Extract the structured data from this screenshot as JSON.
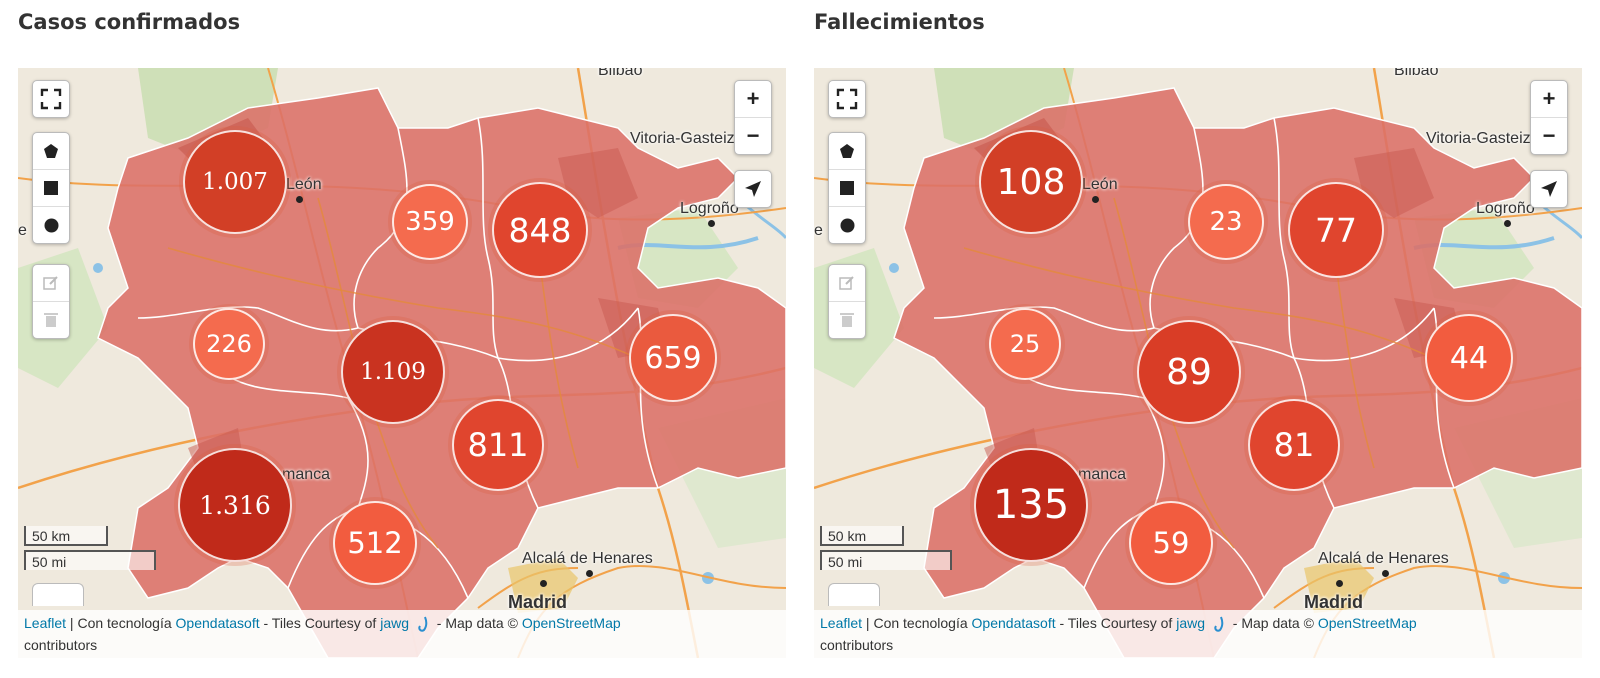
{
  "panels": [
    {
      "title": "Casos confirmados",
      "clusters": [
        {
          "label": "1.007",
          "value": 1007,
          "color": "#d23f26"
        },
        {
          "label": "359",
          "value": 359,
          "color": "#f46b4e"
        },
        {
          "label": "848",
          "value": 848,
          "color": "#e0452e"
        },
        {
          "label": "226",
          "value": 226,
          "color": "#f46b4e"
        },
        {
          "label": "1.109",
          "value": 1109,
          "color": "#c93320"
        },
        {
          "label": "659",
          "value": 659,
          "color": "#ea5a3e"
        },
        {
          "label": "811",
          "value": 811,
          "color": "#e0452e"
        },
        {
          "label": "1.316",
          "value": 1316,
          "color": "#c02a1a"
        },
        {
          "label": "512",
          "value": 512,
          "color": "#f25c3f"
        }
      ]
    },
    {
      "title": "Fallecimientos",
      "clusters": [
        {
          "label": "108",
          "value": 108,
          "color": "#d23f26"
        },
        {
          "label": "23",
          "value": 23,
          "color": "#f46b4e"
        },
        {
          "label": "77",
          "value": 77,
          "color": "#e0452e"
        },
        {
          "label": "25",
          "value": 25,
          "color": "#f46b4e"
        },
        {
          "label": "89",
          "value": 89,
          "color": "#d93d26"
        },
        {
          "label": "44",
          "value": 44,
          "color": "#f25c3f"
        },
        {
          "label": "81",
          "value": 81,
          "color": "#e0452e"
        },
        {
          "label": "135",
          "value": 135,
          "color": "#c02a1a"
        },
        {
          "label": "59",
          "value": 59,
          "color": "#f25c3f"
        }
      ]
    }
  ],
  "places": {
    "bilbao": "Bilbao",
    "vitoria": "Vitoria-Gasteiz",
    "logrono": "Logroño",
    "leon": "León",
    "salamanca": "manca",
    "alcala": "Alcalá de Henares",
    "madrid": "Madrid",
    "edge_e": "e"
  },
  "controls": {
    "zoom_in": "+",
    "zoom_out": "−",
    "fullscreen_icon": "fullscreen-icon",
    "draw_polygon_icon": "pentagon-icon",
    "draw_rectangle_icon": "square-icon",
    "draw_circle_icon": "circle-icon",
    "edit_icon": "edit-icon",
    "delete_icon": "trash-icon",
    "locate_icon": "location-arrow-icon"
  },
  "scale": {
    "km": "50 km",
    "mi": "50 mi"
  },
  "attribution": {
    "leaflet": "Leaflet",
    "sep": " | ",
    "powered": "Con tecnología ",
    "opendatasoft": "Opendatasoft",
    "tiles": " - Tiles Courtesy of ",
    "jawg": "jawg",
    "mapdata": " - Map data © ",
    "osm": "OpenStreetMap",
    "contributors": "contributors"
  },
  "colors": {
    "region_fill": "#dc7068",
    "cluster_light": "#f46b4e",
    "cluster_dark": "#c02a1a"
  }
}
